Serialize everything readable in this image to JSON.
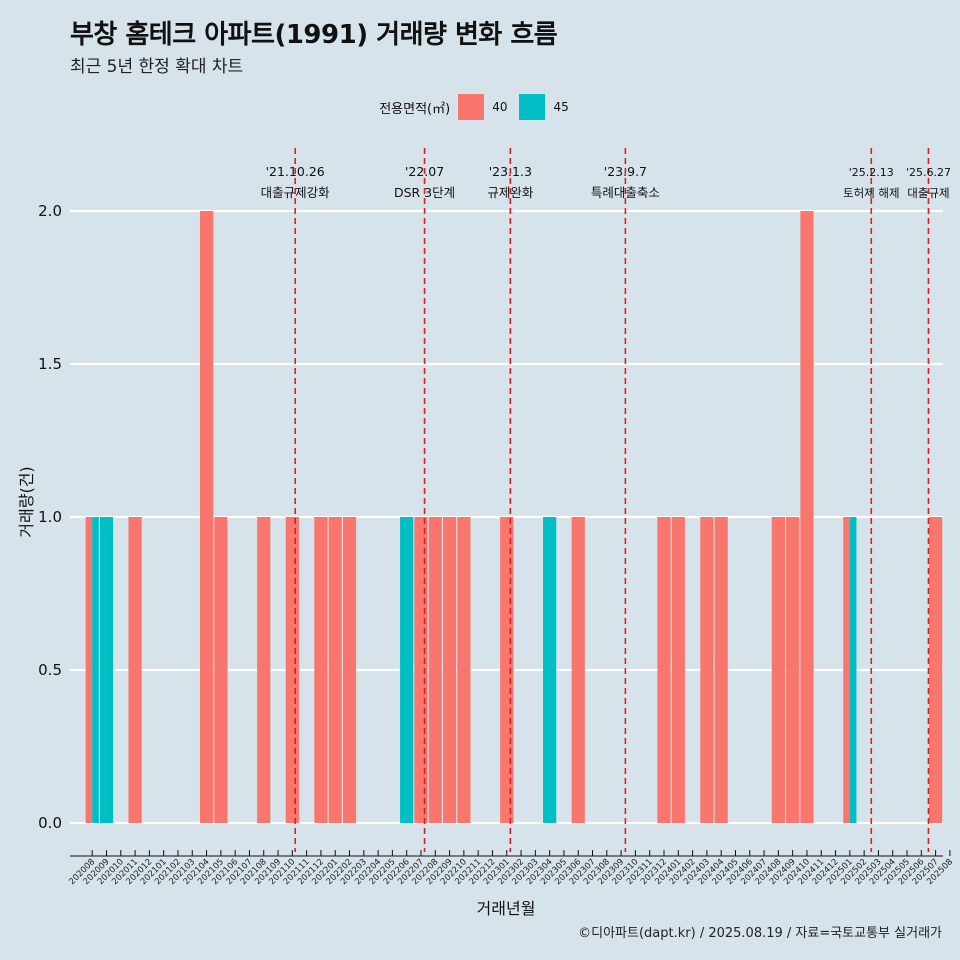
{
  "title": "부창 홈테크 아파트(1991) 거래량 변화 흐름",
  "subtitle": "최근 5년 한정 확대 차트",
  "caption": "©디아파트(dapt.kr) / 2025.08.19 / 자료=국토교통부 실거래가",
  "colors": {
    "area_40": "#f8766d",
    "area_45": "#00bfc4",
    "event_line": "#e11d1d",
    "background": "#d6e3ea"
  },
  "chart_data": {
    "type": "bar",
    "title": "부창 홈테크 아파트(1991) 거래량 변화 흐름",
    "subtitle": "최근 5년 한정 확대 차트",
    "xlabel": "거래년월",
    "ylabel": "거래량(건)",
    "ylim": [
      0,
      2.0
    ],
    "yticks": [
      "0.0",
      "0.5",
      "1.0",
      "1.5",
      "2.0"
    ],
    "ytick_values": [
      0,
      0.5,
      1.0,
      1.5,
      2.0
    ],
    "grid": true,
    "legend_title": "전용면적(㎡)",
    "legend_position": "top",
    "categories": [
      "202008",
      "202009",
      "202010",
      "202011",
      "202012",
      "202101",
      "202102",
      "202103",
      "202104",
      "202105",
      "202106",
      "202107",
      "202108",
      "202109",
      "202110",
      "202111",
      "202112",
      "202201",
      "202202",
      "202203",
      "202204",
      "202205",
      "202206",
      "202207",
      "202208",
      "202209",
      "202210",
      "202211",
      "202212",
      "202301",
      "202302",
      "202303",
      "202304",
      "202305",
      "202306",
      "202307",
      "202308",
      "202309",
      "202310",
      "202311",
      "202312",
      "202401",
      "202402",
      "202403",
      "202404",
      "202405",
      "202406",
      "202407",
      "202408",
      "202409",
      "202410",
      "202411",
      "202412",
      "202501",
      "202502",
      "202503",
      "202504",
      "202505",
      "202506",
      "202507",
      "202508"
    ],
    "series": [
      {
        "name": "40",
        "values": [
          1,
          0,
          0,
          1,
          0,
          0,
          0,
          0,
          2,
          1,
          0,
          0,
          1,
          0,
          1,
          0,
          1,
          1,
          1,
          0,
          0,
          0,
          0,
          1,
          1,
          1,
          1,
          0,
          0,
          1,
          0,
          0,
          0,
          0,
          1,
          0,
          0,
          0,
          0,
          0,
          1,
          1,
          0,
          1,
          1,
          0,
          0,
          0,
          1,
          1,
          2,
          0,
          0,
          1,
          0,
          0,
          0,
          0,
          0,
          1,
          0
        ]
      },
      {
        "name": "45",
        "values": [
          1,
          1,
          0,
          0,
          0,
          0,
          0,
          0,
          0,
          0,
          0,
          0,
          0,
          0,
          0,
          0,
          0,
          0,
          0,
          0,
          0,
          0,
          1,
          0,
          0,
          0,
          0,
          0,
          0,
          0,
          0,
          0,
          1,
          0,
          0,
          0,
          0,
          0,
          0,
          0,
          0,
          0,
          0,
          0,
          0,
          0,
          0,
          0,
          0,
          0,
          0,
          0,
          0,
          1,
          0,
          0,
          0,
          0,
          0,
          0,
          0
        ]
      }
    ],
    "annotations": [
      {
        "x": 14.2,
        "date": "'21.10.26",
        "label": "대출규제강화"
      },
      {
        "x": 23.25,
        "date": "'22.07",
        "label": "DSR 3단계"
      },
      {
        "x": 29.25,
        "date": "'23.1.3",
        "label": "규제완화"
      },
      {
        "x": 37.3,
        "date": "'23.9.7",
        "label": "특례대출축소"
      },
      {
        "x": 54.5,
        "date": "'25.2.13",
        "label": "토허제 해제"
      },
      {
        "x": 58.5,
        "date": "'25.6.27",
        "label": "대출규제"
      }
    ]
  }
}
